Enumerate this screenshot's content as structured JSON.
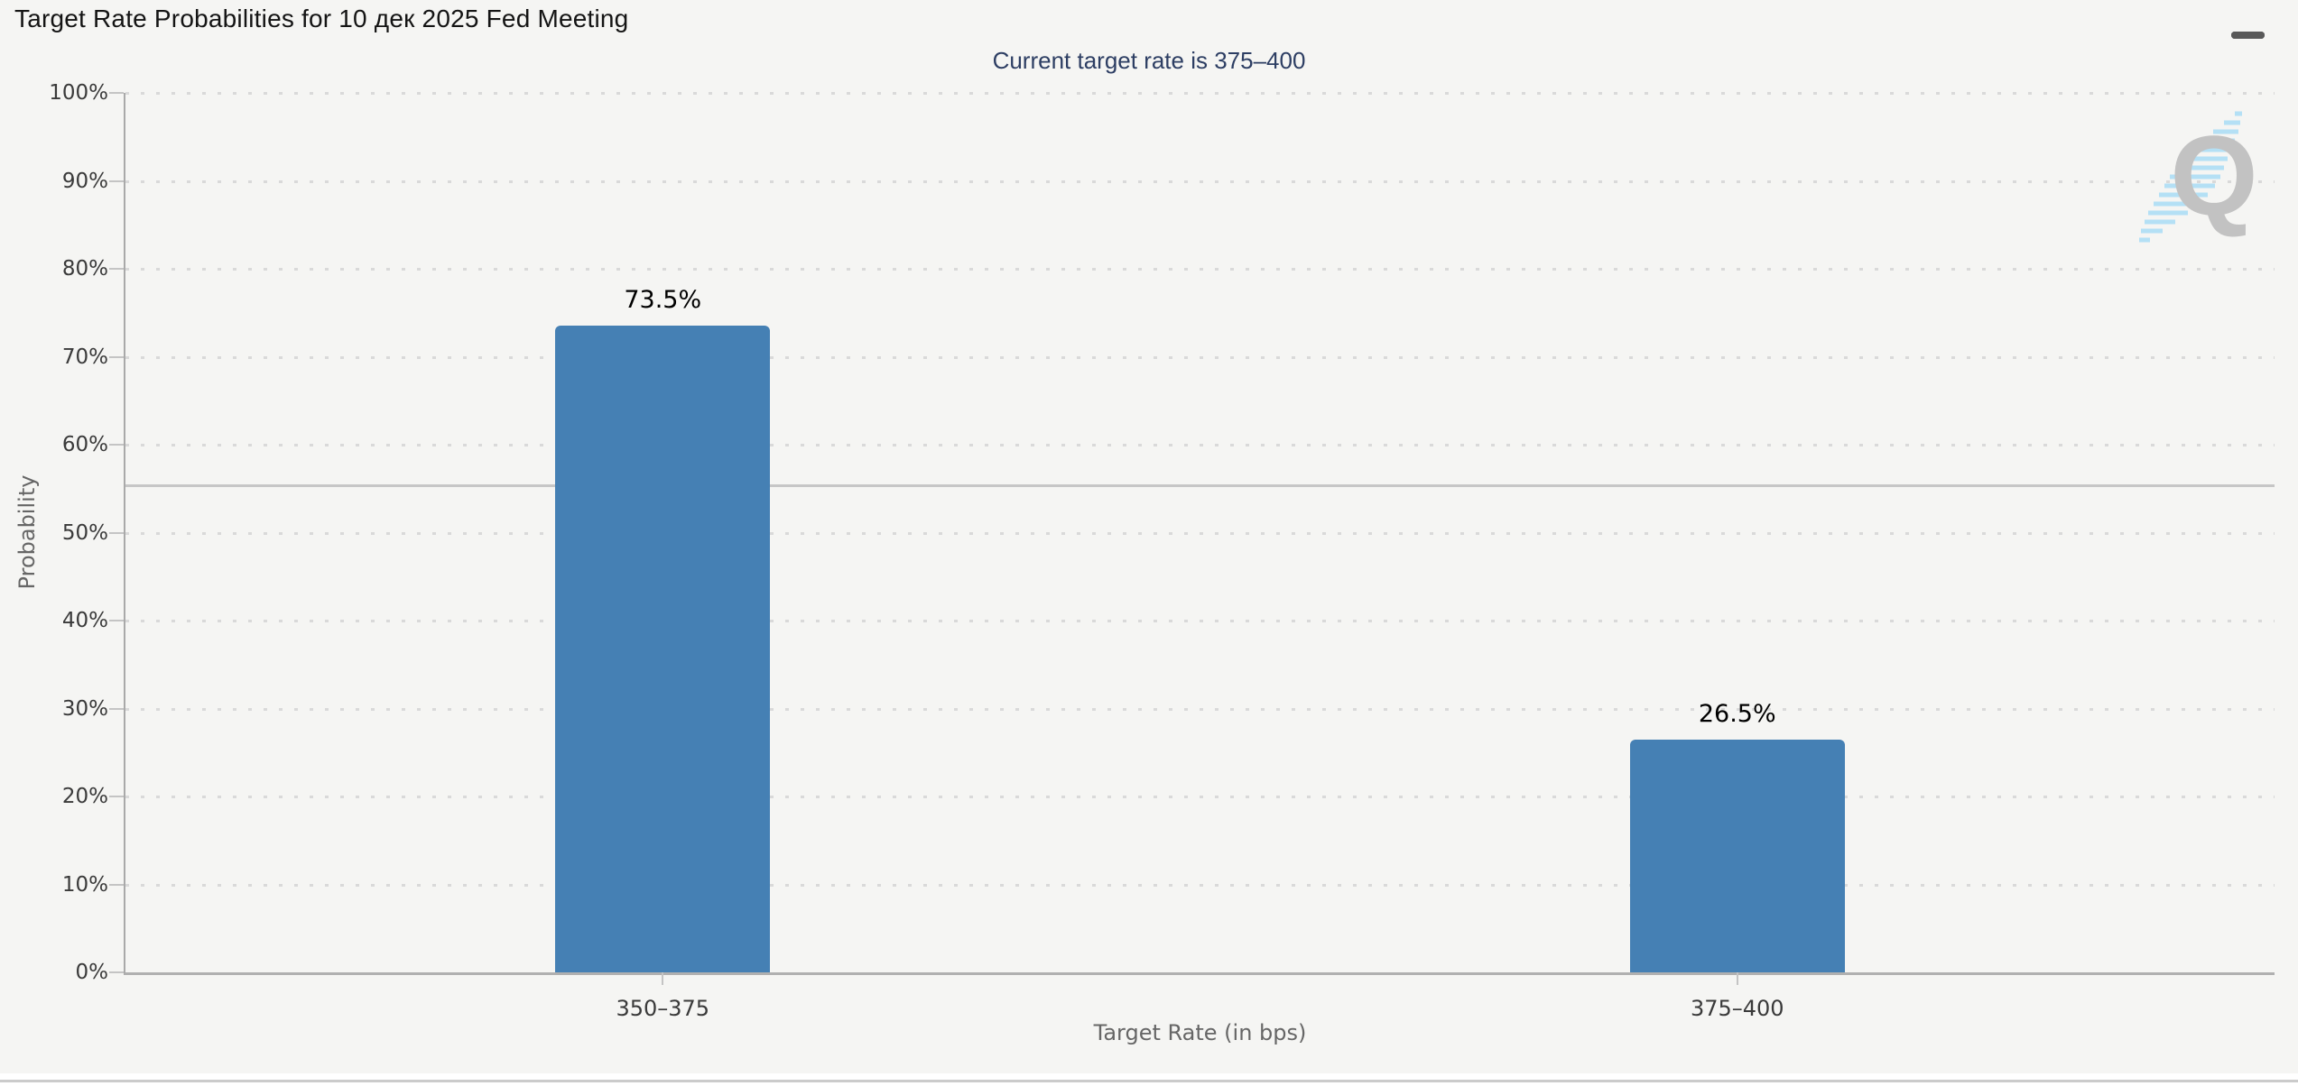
{
  "header": {
    "title": "Target Rate Probabilities for 10 дек 2025 Fed Meeting"
  },
  "menu": {
    "icon": "hamburger-menu-icon"
  },
  "chart_data": {
    "type": "bar",
    "title": "Current target rate is 375–400",
    "categories": [
      "350–375",
      "375–400"
    ],
    "values": [
      73.5,
      26.5
    ],
    "value_labels": [
      "73.5%",
      "26.5%"
    ],
    "xlabel": "Target Rate (in bps)",
    "ylabel": "Probability",
    "ylim": [
      0,
      100
    ],
    "ytick_step": 10,
    "ytick_labels": [
      "0%",
      "10%",
      "20%",
      "30%",
      "40%",
      "50%",
      "60%",
      "70%",
      "80%",
      "90%",
      "100%"
    ],
    "grid": "horizontal dotted",
    "legend": "none",
    "reference_line_pct": 55.4,
    "bar_color": "#4580b4",
    "subtitle_color": "#2d3e63",
    "watermark_letter": "Q"
  }
}
